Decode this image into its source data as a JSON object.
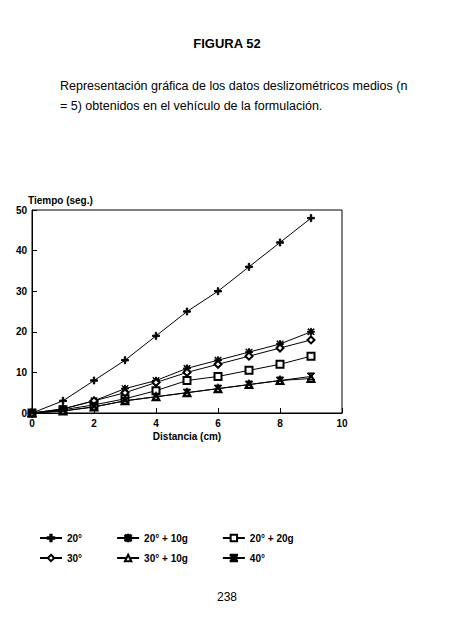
{
  "page": {
    "heading": "FIGURA 52",
    "caption": "Representación gráfica de los datos deslizométricos medios (n = 5) obtenidos en el vehículo de la formulación.",
    "page_number": 238
  },
  "chart_data": {
    "type": "line",
    "x_label": "Distancia (cm)",
    "y_label": "Tiempo (seg.)",
    "x": [
      0,
      1,
      2,
      3,
      4,
      5,
      6,
      7,
      8,
      9
    ],
    "xlim": [
      0,
      10
    ],
    "xticks": [
      0,
      2,
      4,
      6,
      8,
      10
    ],
    "ylim": [
      0,
      50
    ],
    "yticks": [
      0,
      10,
      20,
      30,
      40,
      50
    ],
    "grid": false,
    "legend": "bottom",
    "series": [
      {
        "name": "20°",
        "color": "#000000",
        "marker": "plus",
        "values": [
          0,
          3,
          8,
          13,
          19,
          25,
          30,
          36,
          42,
          48
        ]
      },
      {
        "name": "20° + 10g",
        "color": "#000000",
        "marker": "asterisk",
        "values": [
          0,
          1,
          3,
          6,
          8,
          11,
          13,
          15,
          17,
          20
        ]
      },
      {
        "name": "20° + 20g",
        "color": "#000000",
        "marker": "square",
        "values": [
          0,
          0.8,
          2,
          3.5,
          5.5,
          8,
          9,
          10.5,
          12,
          14
        ]
      },
      {
        "name": "30°",
        "color": "#000000",
        "marker": "diamond",
        "values": [
          0,
          1,
          3,
          5,
          7.5,
          10,
          12,
          14,
          16,
          18
        ]
      },
      {
        "name": "30° + 10g",
        "color": "#000000",
        "marker": "triangle",
        "values": [
          0,
          0.5,
          1.5,
          3,
          4,
          5,
          6,
          7,
          8,
          8.5
        ]
      },
      {
        "name": "40°",
        "color": "#000000",
        "marker": "x",
        "values": [
          0,
          0.5,
          1.5,
          3,
          4,
          5,
          6,
          7,
          8,
          9
        ]
      }
    ]
  }
}
